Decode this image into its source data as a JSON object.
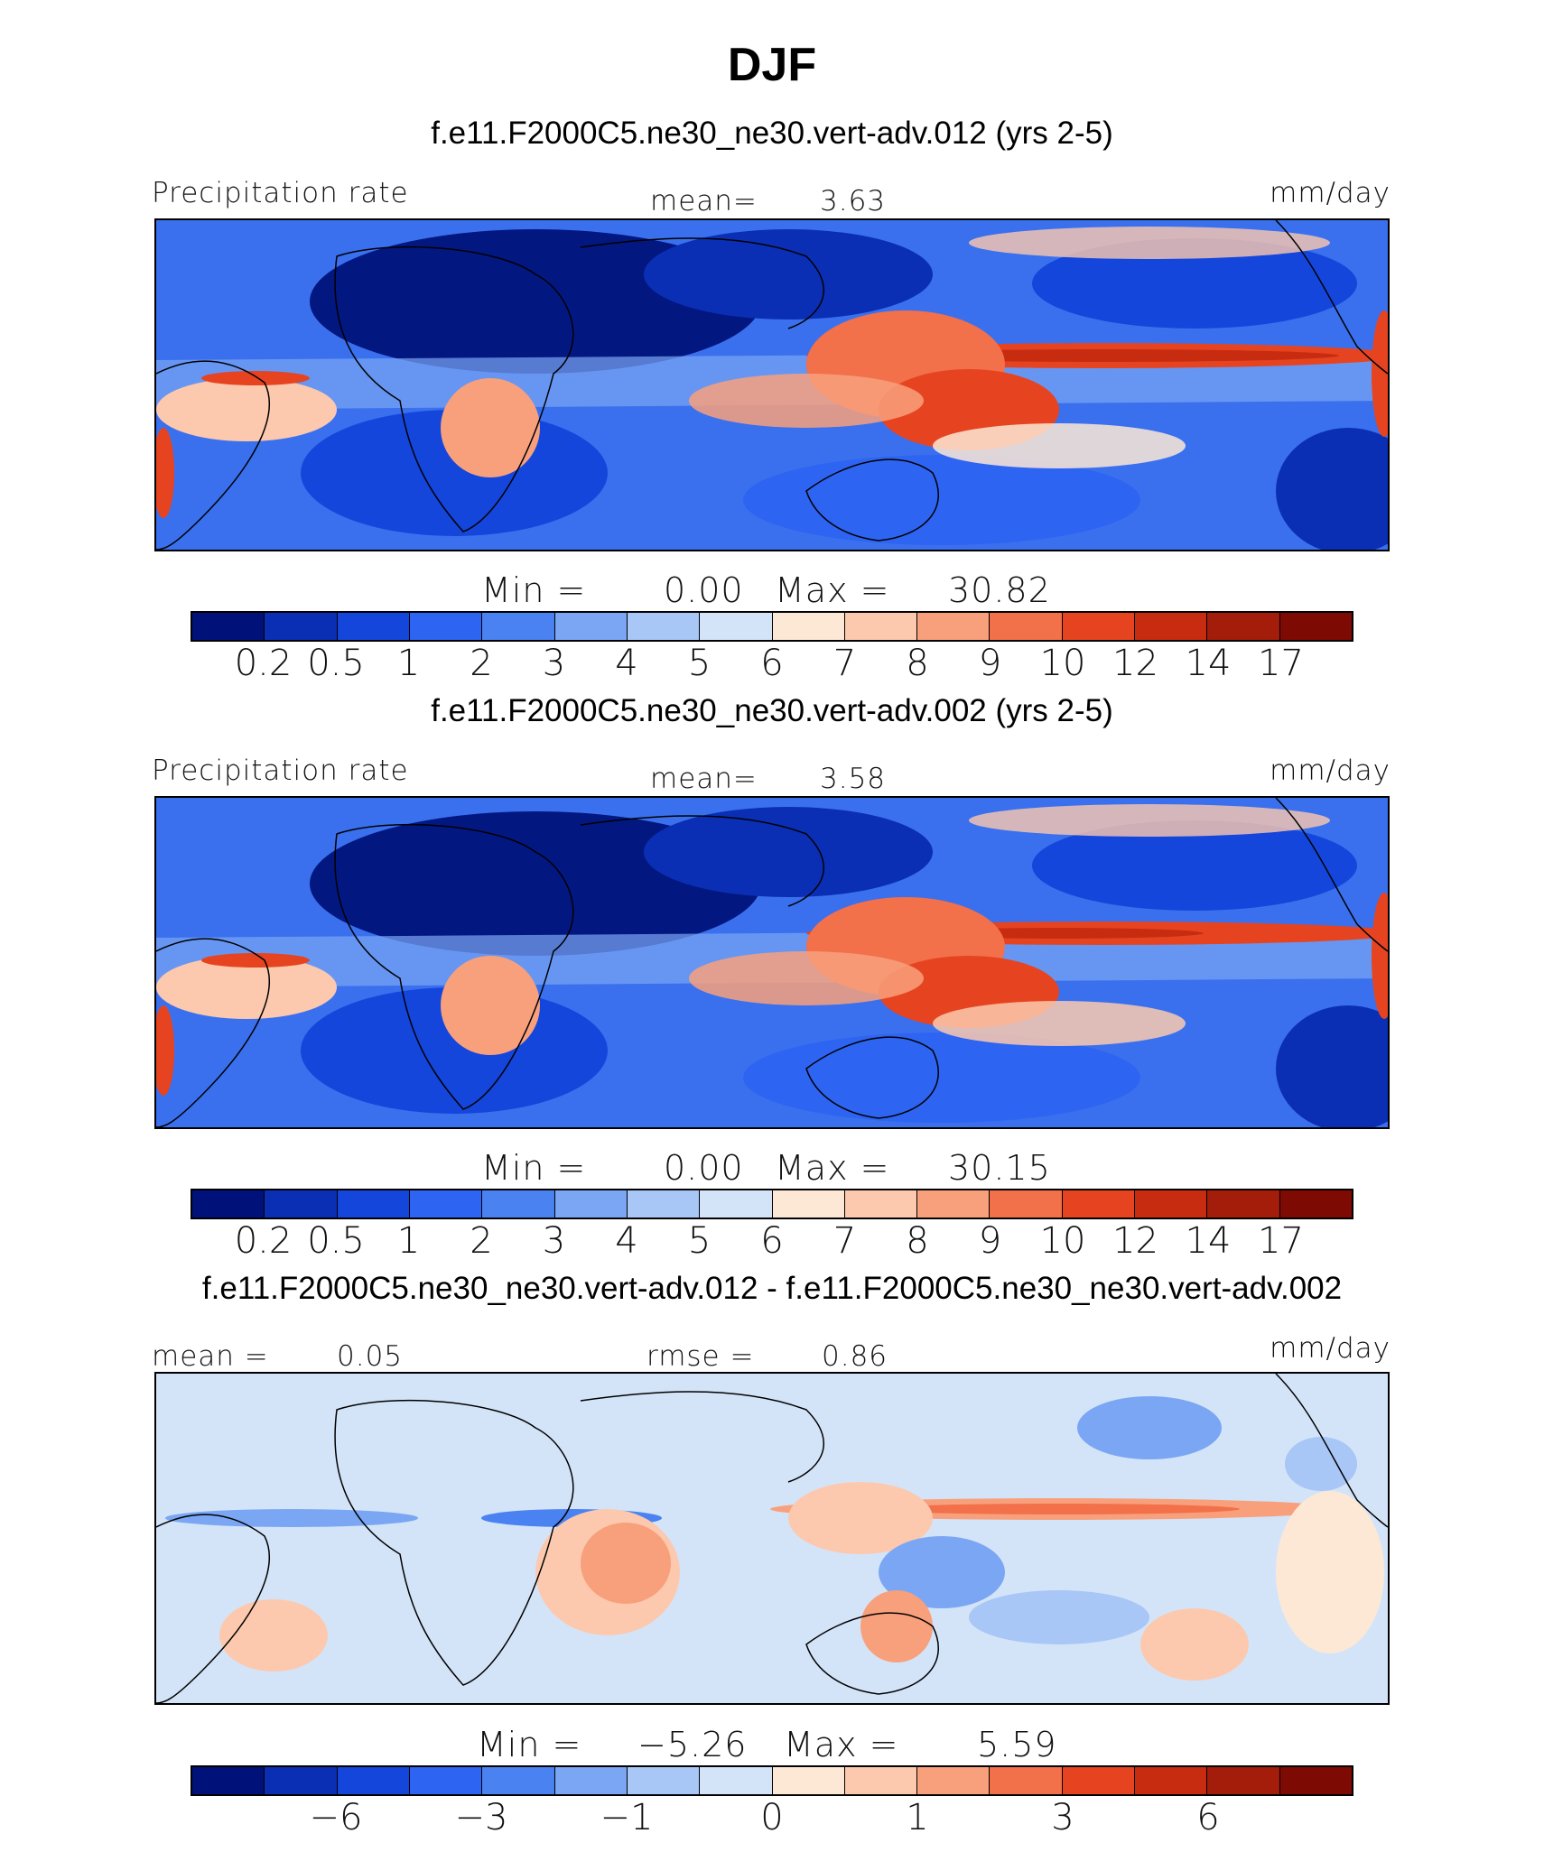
{
  "chart_data": {
    "type": "heatmap",
    "title": "DJF",
    "panels": [
      {
        "title": "f.e11.F2000C5.ne30_ne30.vert-adv.012 (yrs 2-5)",
        "left_label": "Precipitation rate",
        "center_label": "mean=",
        "center_value": "3.63",
        "units": "mm/day",
        "min_label": "Min  =",
        "min_value": "0.00",
        "max_label": "Max  =",
        "max_value": "30.82",
        "colorbar_ticks": [
          "0.2",
          "0.5",
          "1",
          "2",
          "3",
          "4",
          "5",
          "6",
          "7",
          "8",
          "9",
          "10",
          "12",
          "14",
          "17"
        ]
      },
      {
        "title": "f.e11.F2000C5.ne30_ne30.vert-adv.002 (yrs 2-5)",
        "left_label": "Precipitation rate",
        "center_label": "mean=",
        "center_value": "3.58",
        "units": "mm/day",
        "min_label": "Min  =",
        "min_value": "0.00",
        "max_label": "Max  =",
        "max_value": "30.15",
        "colorbar_ticks": [
          "0.2",
          "0.5",
          "1",
          "2",
          "3",
          "4",
          "5",
          "6",
          "7",
          "8",
          "9",
          "10",
          "12",
          "14",
          "17"
        ]
      },
      {
        "title": "f.e11.F2000C5.ne30_ne30.vert-adv.012 - f.e11.F2000C5.ne30_ne30.vert-adv.002",
        "left_label": "mean =",
        "left_value": "0.05",
        "center_label": "rmse =",
        "center_value": "0.86",
        "units": "mm/day",
        "min_label": "Min  =",
        "min_value": "−5.26",
        "max_label": "Max  =",
        "max_value": "5.59",
        "colorbar_ticks": [
          "−6",
          "−3",
          "−1",
          "0",
          "1",
          "3",
          "6"
        ]
      }
    ],
    "colormap": [
      "#00127a",
      "#0a2fb4",
      "#1446dc",
      "#2e64f2",
      "#4a82f2",
      "#7aa6f4",
      "#a8c6f6",
      "#d4e4f8",
      "#fde8d6",
      "#fcc9ae",
      "#f8a07c",
      "#f2704a",
      "#e64420",
      "#c82c10",
      "#a41c0a",
      "#7e0a04"
    ]
  }
}
